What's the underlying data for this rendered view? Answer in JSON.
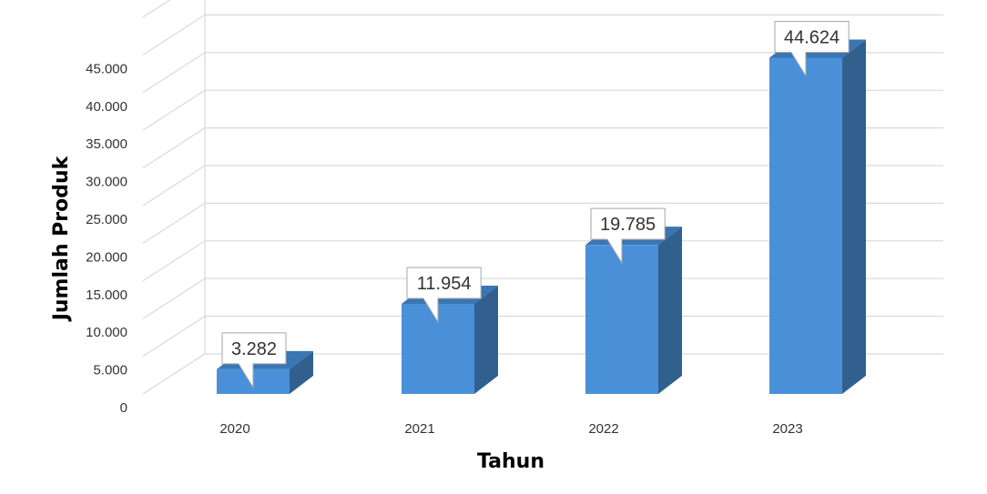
{
  "chart_data": {
    "type": "bar",
    "categories": [
      "2020",
      "2021",
      "2022",
      "2023"
    ],
    "values": [
      3282,
      11954,
      19785,
      44624
    ],
    "data_labels": [
      "3.282",
      "11.954",
      "19.785",
      "44.624"
    ],
    "title": "",
    "xlabel": "Tahun",
    "ylabel": "Jumlah Produk",
    "ylim": [
      0,
      50000
    ],
    "yticks": [
      0,
      5000,
      10000,
      15000,
      20000,
      25000,
      30000,
      35000,
      40000,
      45000
    ],
    "ytick_labels": [
      "0",
      "5.000",
      "10.000",
      "15.000",
      "20.000",
      "25.000",
      "30.000",
      "35.000",
      "40.000",
      "45.000"
    ],
    "grid": true,
    "legend": false,
    "style": "3d-column",
    "colors": {
      "bar_front": "#4A90D9",
      "bar_top": "#3A76B3",
      "bar_side": "#31608E",
      "grid": "#D9D9D9",
      "label_border": "#A6A6A6"
    }
  }
}
